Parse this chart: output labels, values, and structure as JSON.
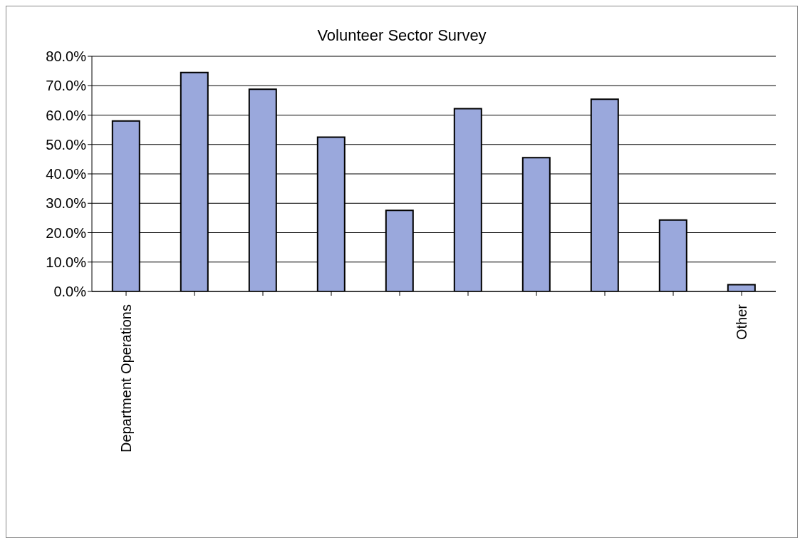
{
  "chart_data": {
    "type": "bar",
    "title": "Volunteer Sector Survey",
    "categories": [
      "Department Operations",
      null,
      null,
      null,
      null,
      null,
      null,
      null,
      null,
      "Other"
    ],
    "values": [
      58.0,
      74.5,
      68.8,
      52.5,
      27.6,
      62.2,
      45.5,
      65.4,
      24.3,
      2.3
    ],
    "color": "#9aa8dc",
    "ylim": [
      0,
      80
    ],
    "yticks": [
      {
        "value": 0,
        "label": "0.0%"
      },
      {
        "value": 10,
        "label": "10.0%"
      },
      {
        "value": 20,
        "label": "20.0%"
      },
      {
        "value": 30,
        "label": "30.0%"
      },
      {
        "value": 40,
        "label": "40.0%"
      },
      {
        "value": 50,
        "label": "50.0%"
      },
      {
        "value": 60,
        "label": "60.0%"
      },
      {
        "value": 70,
        "label": "70.0%"
      },
      {
        "value": 80,
        "label": "80.0%"
      }
    ],
    "grid": "y",
    "legend": false
  }
}
